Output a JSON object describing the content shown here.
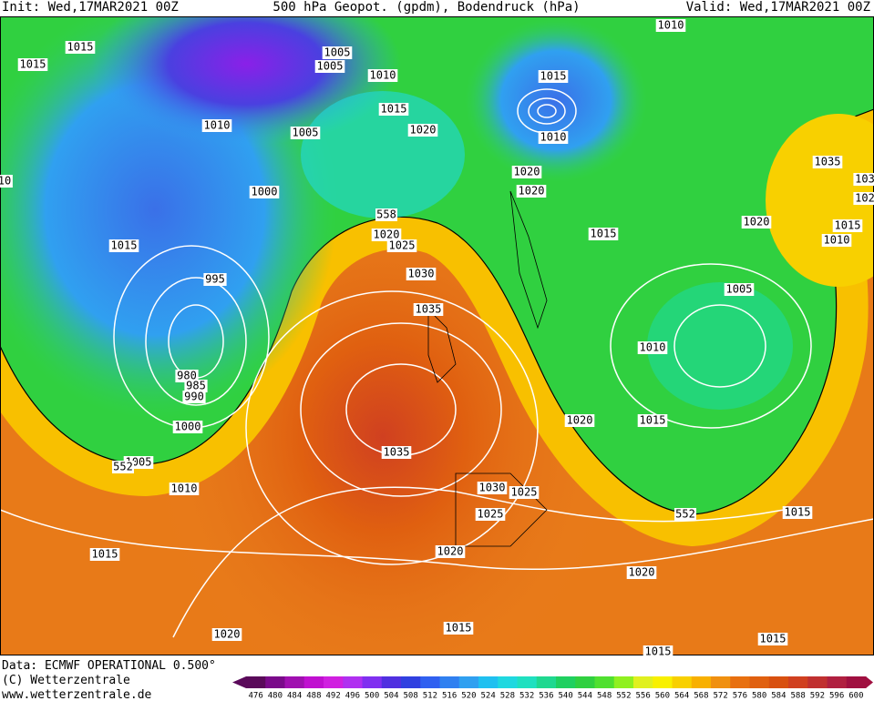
{
  "header": {
    "init": "Init: Wed,17MAR2021 00Z",
    "title": "500 hPa Geopot. (gpdm), Bodendruck (hPa)",
    "valid": "Valid: Wed,17MAR2021 00Z"
  },
  "footer": {
    "data": "Data: ECMWF OPERATIONAL 0.500°",
    "copyright": "(C) Wetterzentrale",
    "url": "www.wetterzentrale.de"
  },
  "isobar_labels": [
    "1015",
    "1015",
    "1010",
    "1005",
    "1005",
    "1010",
    "1015",
    "1020",
    "1005",
    "1000",
    "1015",
    "995",
    "980",
    "985",
    "990",
    "1000",
    "1005",
    "1010",
    "1015",
    "1020",
    "1020",
    "1025",
    "1030",
    "1035",
    "1035",
    "1030",
    "1025",
    "1025",
    "1020",
    "1015",
    "1015",
    "1020",
    "1015",
    "1015",
    "1020",
    "1015",
    "1010",
    "1005",
    "1015",
    "1020",
    "1035",
    "1015",
    "1010",
    "1010",
    "1015",
    "1010",
    "1020",
    "1020",
    "103",
    "102",
    "10"
  ],
  "height_labels": [
    "558",
    "552",
    "552"
  ],
  "colorbar": {
    "ticks": [
      476,
      480,
      484,
      488,
      492,
      496,
      500,
      504,
      508,
      512,
      516,
      520,
      524,
      528,
      532,
      536,
      540,
      544,
      548,
      552,
      556,
      560,
      564,
      568,
      572,
      576,
      580,
      584,
      588,
      592,
      596,
      600
    ],
    "colors": [
      "#5a0a5a",
      "#7a0a8a",
      "#a010b0",
      "#c010d0",
      "#d020e0",
      "#b030f0",
      "#8030f0",
      "#5030e0",
      "#3040e0",
      "#3060f0",
      "#3080f0",
      "#30a0f0",
      "#20c0f0",
      "#20d8e0",
      "#20e0c0",
      "#20d890",
      "#20d060",
      "#30d040",
      "#50e030",
      "#90f020",
      "#e0f020",
      "#f8f000",
      "#f8d000",
      "#f8b000",
      "#f09010",
      "#e87010",
      "#e06010",
      "#d85010",
      "#d04020",
      "#c03030",
      "#b02040",
      "#a01040"
    ]
  }
}
